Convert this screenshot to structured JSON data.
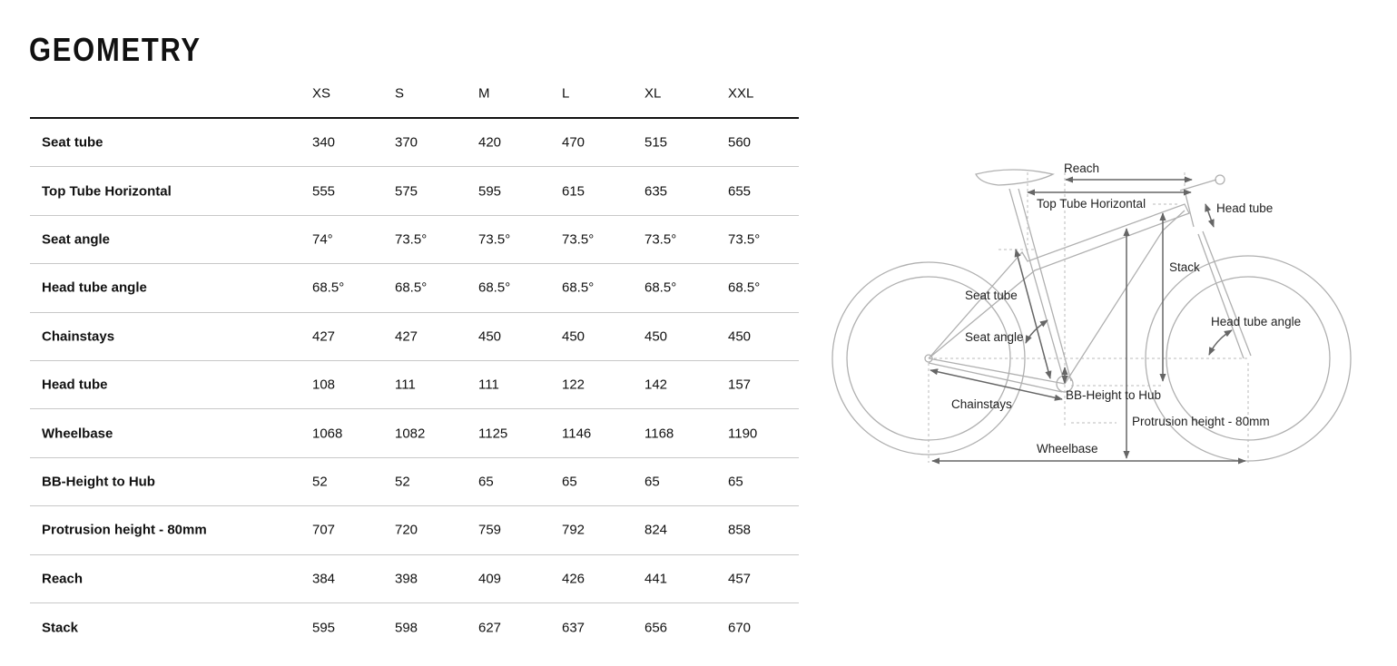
{
  "title": "GEOMETRY",
  "sizes": [
    "XS",
    "S",
    "M",
    "L",
    "XL",
    "XXL"
  ],
  "rows": [
    {
      "label": "Seat tube",
      "values": [
        "340",
        "370",
        "420",
        "470",
        "515",
        "560"
      ]
    },
    {
      "label": "Top Tube Horizontal",
      "values": [
        "555",
        "575",
        "595",
        "615",
        "635",
        "655"
      ]
    },
    {
      "label": "Seat angle",
      "values": [
        "74°",
        "73.5°",
        "73.5°",
        "73.5°",
        "73.5°",
        "73.5°"
      ]
    },
    {
      "label": "Head tube angle",
      "values": [
        "68.5°",
        "68.5°",
        "68.5°",
        "68.5°",
        "68.5°",
        "68.5°"
      ]
    },
    {
      "label": "Chainstays",
      "values": [
        "427",
        "427",
        "450",
        "450",
        "450",
        "450"
      ]
    },
    {
      "label": "Head tube",
      "values": [
        "108",
        "111",
        "111",
        "122",
        "142",
        "157"
      ]
    },
    {
      "label": "Wheelbase",
      "values": [
        "1068",
        "1082",
        "1125",
        "1146",
        "1168",
        "1190"
      ]
    },
    {
      "label": "BB-Height to Hub",
      "values": [
        "52",
        "52",
        "65",
        "65",
        "65",
        "65"
      ]
    },
    {
      "label": "Protrusion height - 80mm",
      "values": [
        "707",
        "720",
        "759",
        "792",
        "824",
        "858"
      ]
    },
    {
      "label": "Reach",
      "values": [
        "384",
        "398",
        "409",
        "426",
        "441",
        "457"
      ]
    },
    {
      "label": "Stack",
      "values": [
        "595",
        "598",
        "627",
        "637",
        "656",
        "670"
      ]
    }
  ],
  "diagram": {
    "reach": "Reach",
    "top_tube": "Top Tube Horizontal",
    "head_tube": "Head tube",
    "stack": "Stack",
    "seat_tube": "Seat tube",
    "seat_angle": "Seat angle",
    "head_tube_angle": "Head tube angle",
    "chainstays": "Chainstays",
    "bb_height": "BB-Height to Hub",
    "protrusion": "Protrusion height - 80mm",
    "wheelbase": "Wheelbase",
    "line_color": "#b0b0b0",
    "arrow_color": "#666666"
  }
}
